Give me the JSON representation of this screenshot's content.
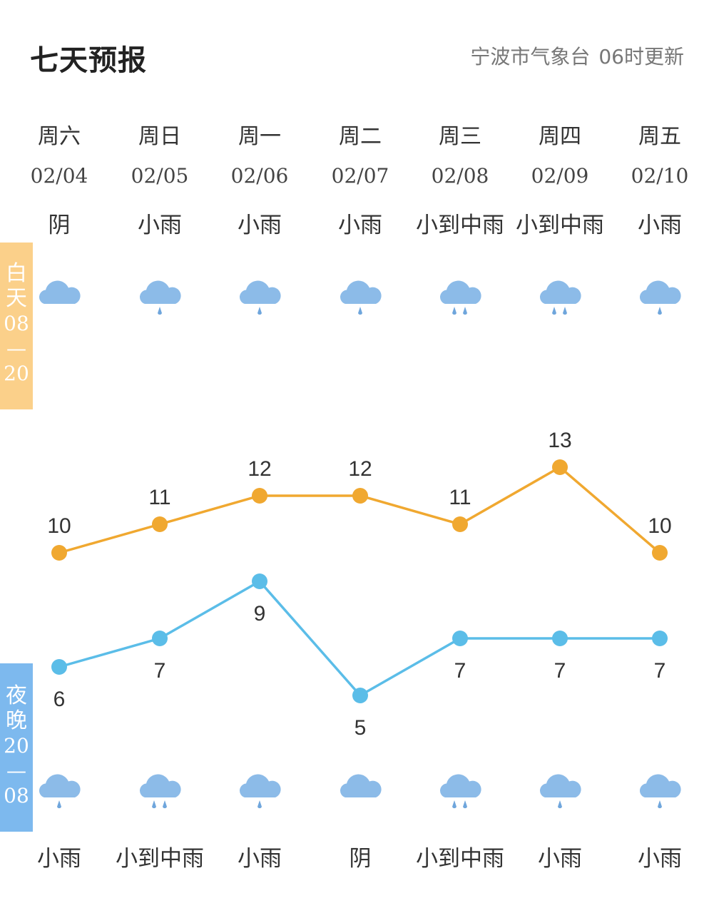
{
  "header": {
    "title": "七天预报",
    "source": "宁波市气象台",
    "update": "06时更新"
  },
  "side_labels": {
    "day": {
      "title": [
        "白",
        "天"
      ],
      "hours": [
        "08",
        "—",
        "20"
      ]
    },
    "night": {
      "title": [
        "夜",
        "晚"
      ],
      "hours": [
        "20",
        "—",
        "08"
      ]
    }
  },
  "days": [
    {
      "weekday": "周六",
      "date": "02/04",
      "day_condition": "阴",
      "night_condition": "小雨",
      "day_icon": "cloudy-icon",
      "night_icon": "light-rain-icon"
    },
    {
      "weekday": "周日",
      "date": "02/05",
      "day_condition": "小雨",
      "night_condition": "小到中雨",
      "day_icon": "light-rain-icon",
      "night_icon": "moderate-rain-icon"
    },
    {
      "weekday": "周一",
      "date": "02/06",
      "day_condition": "小雨",
      "night_condition": "小雨",
      "day_icon": "light-rain-icon",
      "night_icon": "light-rain-icon"
    },
    {
      "weekday": "周二",
      "date": "02/07",
      "day_condition": "小雨",
      "night_condition": "阴",
      "day_icon": "light-rain-icon",
      "night_icon": "cloudy-icon"
    },
    {
      "weekday": "周三",
      "date": "02/08",
      "day_condition": "小到中雨",
      "night_condition": "小到中雨",
      "day_icon": "moderate-rain-icon",
      "night_icon": "moderate-rain-icon"
    },
    {
      "weekday": "周四",
      "date": "02/09",
      "day_condition": "小到中雨",
      "night_condition": "小雨",
      "day_icon": "moderate-rain-icon",
      "night_icon": "light-rain-icon"
    },
    {
      "weekday": "周五",
      "date": "02/10",
      "day_condition": "小雨",
      "night_condition": "小雨",
      "day_icon": "light-rain-icon",
      "night_icon": "light-rain-icon"
    }
  ],
  "colors": {
    "high_line": "#f0a830",
    "low_line": "#5bbde8",
    "icon_cloud": "#8cbbe8",
    "icon_drop": "#6fa6dc",
    "day_band": "#fbd08a",
    "night_band": "#7db9ee"
  },
  "chart_data": {
    "type": "line",
    "categories": [
      "周六",
      "周日",
      "周一",
      "周二",
      "周三",
      "周四",
      "周五"
    ],
    "series": [
      {
        "values": [
          10,
          11,
          12,
          12,
          11,
          13,
          10
        ]
      },
      {
        "values": [
          6,
          7,
          9,
          5,
          7,
          7,
          7
        ]
      }
    ]
  }
}
